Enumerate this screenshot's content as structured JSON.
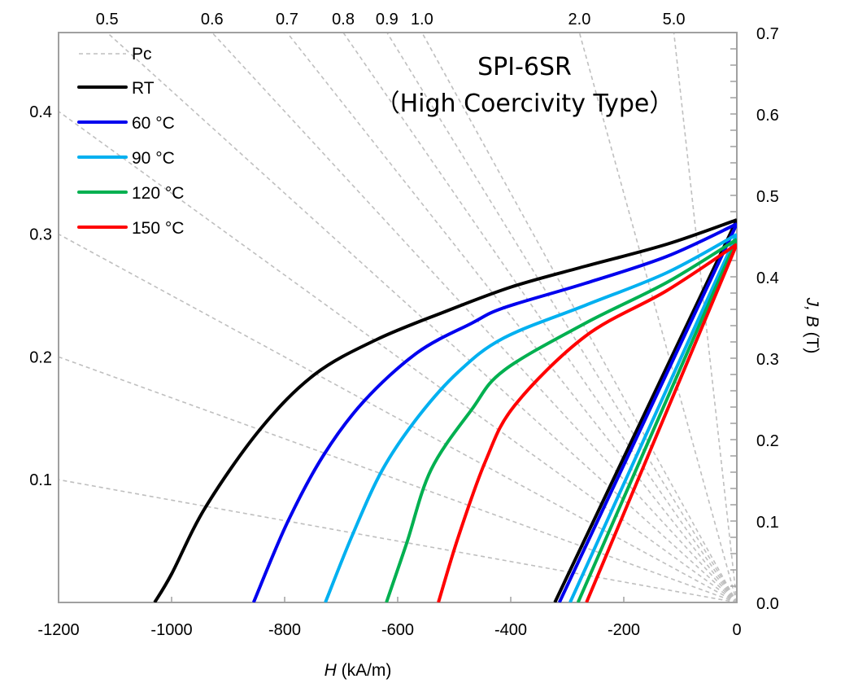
{
  "chart_data": {
    "type": "line",
    "title_line1": "SPI-6SR",
    "title_line2": "（High Coercivity Type）",
    "xlabel_italic": "H",
    "xlabel_unit": " (kA/m)",
    "ylabel_italic": "J, B",
    "ylabel_unit": " (T)",
    "xlim": [
      -1200,
      0
    ],
    "ylim": [
      0,
      0.7
    ],
    "xticks": [
      -1200,
      -1000,
      -800,
      -600,
      -400,
      -200,
      0
    ],
    "xtick_labels": [
      "-1200",
      "-1000",
      "-800",
      "-600",
      "-400",
      "-200",
      "0"
    ],
    "yticks": [
      0.0,
      0.1,
      0.2,
      0.3,
      0.4,
      0.5,
      0.6,
      0.7
    ],
    "ytick_labels": [
      "0.0",
      "0.1",
      "0.2",
      "0.3",
      "0.4",
      "0.5",
      "0.6",
      "0.7"
    ],
    "y_axis_side": "right",
    "grid": false,
    "legend_position": "top-left",
    "pc_lines": {
      "name": "Pc",
      "color": "#bfbfbf",
      "style": "dashed",
      "values": [
        0.1,
        0.2,
        0.3,
        0.4,
        0.5,
        0.6,
        0.7,
        0.8,
        0.9,
        1.0,
        2.0,
        5.0
      ],
      "labels": [
        "0.1",
        "0.2",
        "0.3",
        "0.4",
        "0.5",
        "0.6",
        "0.7",
        "0.8",
        "0.9",
        "1.0",
        "2.0",
        "5.0"
      ]
    },
    "series": [
      {
        "name": "RT",
        "color": "#000000",
        "J": [
          [
            -1030,
            0
          ],
          [
            -1000,
            0.035
          ],
          [
            -940,
            0.117
          ],
          [
            -843,
            0.213
          ],
          [
            -747,
            0.28
          ],
          [
            -637,
            0.323
          ],
          [
            -517,
            0.357
          ],
          [
            -397,
            0.388
          ],
          [
            -268,
            0.413
          ],
          [
            -124,
            0.44
          ],
          [
            0,
            0.47
          ]
        ],
        "B": {
          "Hcb": -322,
          "Br": 0.47
        }
      },
      {
        "name": "60 °C",
        "color": "#0000ee",
        "J": [
          [
            -855,
            0
          ],
          [
            -796,
            0.097
          ],
          [
            -732,
            0.18
          ],
          [
            -660,
            0.247
          ],
          [
            -565,
            0.307
          ],
          [
            -469,
            0.343
          ],
          [
            -412,
            0.362
          ],
          [
            -268,
            0.392
          ],
          [
            -124,
            0.425
          ],
          [
            0,
            0.465
          ]
        ],
        "B": {
          "Hcb": -314,
          "Br": 0.465
        }
      },
      {
        "name": "90 °C",
        "color": "#00b0f0",
        "J": [
          [
            -728,
            0
          ],
          [
            -680,
            0.083
          ],
          [
            -627,
            0.163
          ],
          [
            -565,
            0.227
          ],
          [
            -493,
            0.283
          ],
          [
            -412,
            0.325
          ],
          [
            -268,
            0.365
          ],
          [
            -124,
            0.405
          ],
          [
            0,
            0.452
          ]
        ],
        "B": {
          "Hcb": -295,
          "Br": 0.452
        }
      },
      {
        "name": "120 °C",
        "color": "#00b050",
        "J": [
          [
            -620,
            0
          ],
          [
            -584,
            0.073
          ],
          [
            -541,
            0.163
          ],
          [
            -469,
            0.237
          ],
          [
            -412,
            0.285
          ],
          [
            -268,
            0.343
          ],
          [
            -124,
            0.393
          ],
          [
            0,
            0.446
          ]
        ],
        "B": {
          "Hcb": -281,
          "Br": 0.446
        }
      },
      {
        "name": "150 °C",
        "color": "#ff0000",
        "J": [
          [
            -528,
            0
          ],
          [
            -493,
            0.08
          ],
          [
            -445,
            0.173
          ],
          [
            -393,
            0.242
          ],
          [
            -268,
            0.327
          ],
          [
            -124,
            0.383
          ],
          [
            0,
            0.44
          ]
        ],
        "B": {
          "Hcb": -266,
          "Br": 0.44
        }
      }
    ]
  }
}
